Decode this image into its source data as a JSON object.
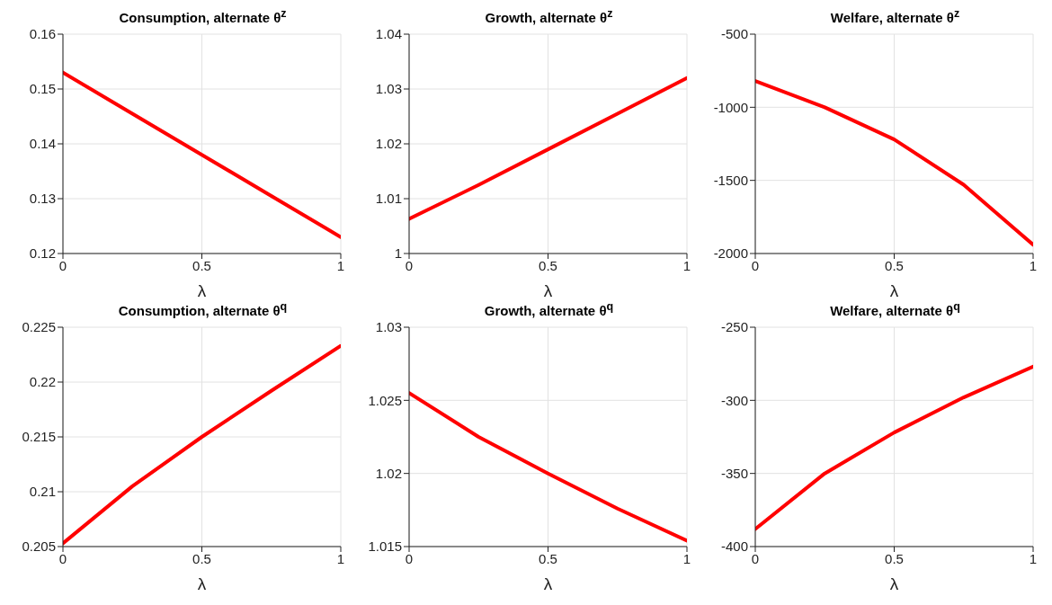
{
  "chart_data": [
    {
      "type": "line",
      "title": "Consumption, alternate θ$^{z}$",
      "xlabel": "λ",
      "x": [
        0,
        0.25,
        0.5,
        0.75,
        1
      ],
      "series": [
        {
          "color": "#ff0000",
          "values": [
            0.153,
            0.1455,
            0.138,
            0.1305,
            0.123
          ]
        }
      ],
      "xlim": [
        0,
        1
      ],
      "xticks": [
        0,
        0.5,
        1
      ],
      "ylim": [
        0.12,
        0.16
      ],
      "yticks": [
        0.12,
        0.13,
        0.14,
        0.15,
        0.16
      ],
      "grid": true
    },
    {
      "type": "line",
      "title": "Growth, alternate θ$^{z}$",
      "xlabel": "λ",
      "x": [
        0,
        0.25,
        0.5,
        0.75,
        1
      ],
      "series": [
        {
          "color": "#ff0000",
          "values": [
            1.0063,
            1.0125,
            1.019,
            1.0255,
            1.032
          ]
        }
      ],
      "xlim": [
        0,
        1
      ],
      "xticks": [
        0,
        0.5,
        1
      ],
      "ylim": [
        1,
        1.04
      ],
      "yticks": [
        1,
        1.01,
        1.02,
        1.03,
        1.04
      ],
      "grid": true
    },
    {
      "type": "line",
      "title": "Welfare, alternate θ$^{z}$",
      "xlabel": "λ",
      "x": [
        0,
        0.25,
        0.5,
        0.75,
        1
      ],
      "series": [
        {
          "color": "#ff0000",
          "values": [
            -820,
            -1000,
            -1220,
            -1530,
            -1940
          ]
        }
      ],
      "xlim": [
        0,
        1
      ],
      "xticks": [
        0,
        0.5,
        1
      ],
      "ylim": [
        -2000,
        -500
      ],
      "yticks": [
        -2000,
        -1500,
        -1000,
        -500
      ],
      "grid": true
    },
    {
      "type": "line",
      "title": "Consumption, alternate θ$^{q}$",
      "xlabel": "λ",
      "x": [
        0,
        0.25,
        0.5,
        0.75,
        1
      ],
      "series": [
        {
          "color": "#ff0000",
          "values": [
            0.2053,
            0.2105,
            0.215,
            0.2192,
            0.2233
          ]
        }
      ],
      "xlim": [
        0,
        1
      ],
      "xticks": [
        0,
        0.5,
        1
      ],
      "ylim": [
        0.205,
        0.225
      ],
      "yticks": [
        0.205,
        0.21,
        0.215,
        0.22,
        0.225
      ],
      "grid": true
    },
    {
      "type": "line",
      "title": "Growth, alternate θ$^{q}$",
      "xlabel": "λ",
      "x": [
        0,
        0.25,
        0.5,
        0.75,
        1
      ],
      "series": [
        {
          "color": "#ff0000",
          "values": [
            1.0255,
            1.0225,
            1.02,
            1.0176,
            1.0154
          ]
        }
      ],
      "xlim": [
        0,
        1
      ],
      "xticks": [
        0,
        0.5,
        1
      ],
      "ylim": [
        1.015,
        1.03
      ],
      "yticks": [
        1.015,
        1.02,
        1.025,
        1.03
      ],
      "grid": true
    },
    {
      "type": "line",
      "title": "Welfare, alternate θ$^{q}$",
      "xlabel": "λ",
      "x": [
        0,
        0.25,
        0.5,
        0.75,
        1
      ],
      "series": [
        {
          "color": "#ff0000",
          "values": [
            -388,
            -350,
            -322,
            -298,
            -277
          ]
        }
      ],
      "xlim": [
        0,
        1
      ],
      "xticks": [
        0,
        0.5,
        1
      ],
      "ylim": [
        -400,
        -250
      ],
      "yticks": [
        -400,
        -350,
        -300,
        -250
      ],
      "grid": true
    }
  ]
}
